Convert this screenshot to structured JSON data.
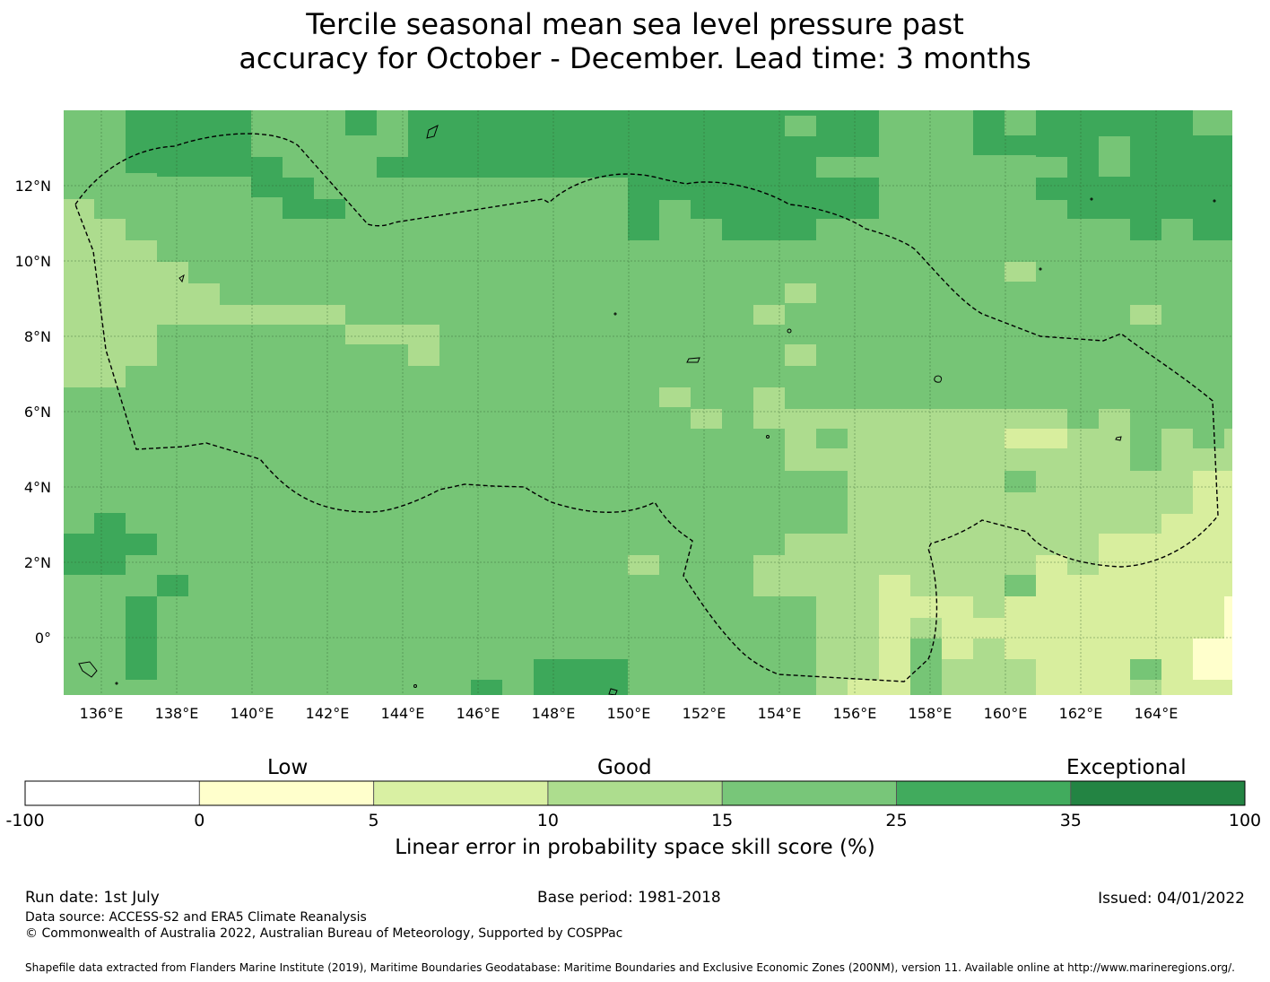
{
  "title": {
    "line1": "Tercile seasonal mean sea level pressure past",
    "line2": "accuracy for October - December. Lead time: 3 months"
  },
  "map": {
    "lat_labels": [
      "12°N",
      "10°N",
      "8°N",
      "6°N",
      "4°N",
      "2°N",
      "0°"
    ],
    "lat_values": [
      12,
      10,
      8,
      6,
      4,
      2,
      0
    ],
    "lon_labels": [
      "136°E",
      "138°E",
      "140°E",
      "142°E",
      "144°E",
      "146°E",
      "148°E",
      "150°E",
      "152°E",
      "154°E",
      "156°E",
      "158°E",
      "160°E",
      "162°E",
      "164°E"
    ],
    "lon_values": [
      136,
      138,
      140,
      142,
      144,
      146,
      148,
      150,
      152,
      154,
      156,
      158,
      160,
      162,
      164
    ],
    "extent": {
      "lon_min": 135,
      "lon_max": 166,
      "lat_min": -1.5,
      "lat_max": 14
    },
    "colors": {
      "light": "#ADDC8E",
      "medium": "#76C576",
      "dark": "#3DA85A",
      "pale": "#D8EE9E"
    }
  },
  "colorbar": {
    "categories": [
      "Low",
      "Good",
      "Exceptional"
    ],
    "ticks": [
      "-100",
      "0",
      "5",
      "10",
      "15",
      "25",
      "35",
      "100"
    ],
    "colors": [
      "#FFFFFF",
      "#FFFFCC",
      "#D9F0A3",
      "#ADDD8E",
      "#78C679",
      "#41AB5D",
      "#238443"
    ],
    "label": "Linear error in probability space skill score (%)"
  },
  "footer": {
    "run_date": "Run date: 1st July",
    "base_period": "Base period: 1981-2018",
    "issued": "Issued: 04/01/2022",
    "data_source": "Data source: ACCESS-S2 and ERA5 Climate Reanalysis",
    "copyright": "© Commonwealth of Australia 2022, Australian Bureau of Meteorology, Supported by COSPPac",
    "shapefile": "Shapefile data extracted from Flanders Marine Institute (2019), Maritime Boundaries Geodatabase: Maritime Boundaries and Exclusive Economic Zones (200NM), version 11. Available online at http://www.marineregions.org/."
  }
}
